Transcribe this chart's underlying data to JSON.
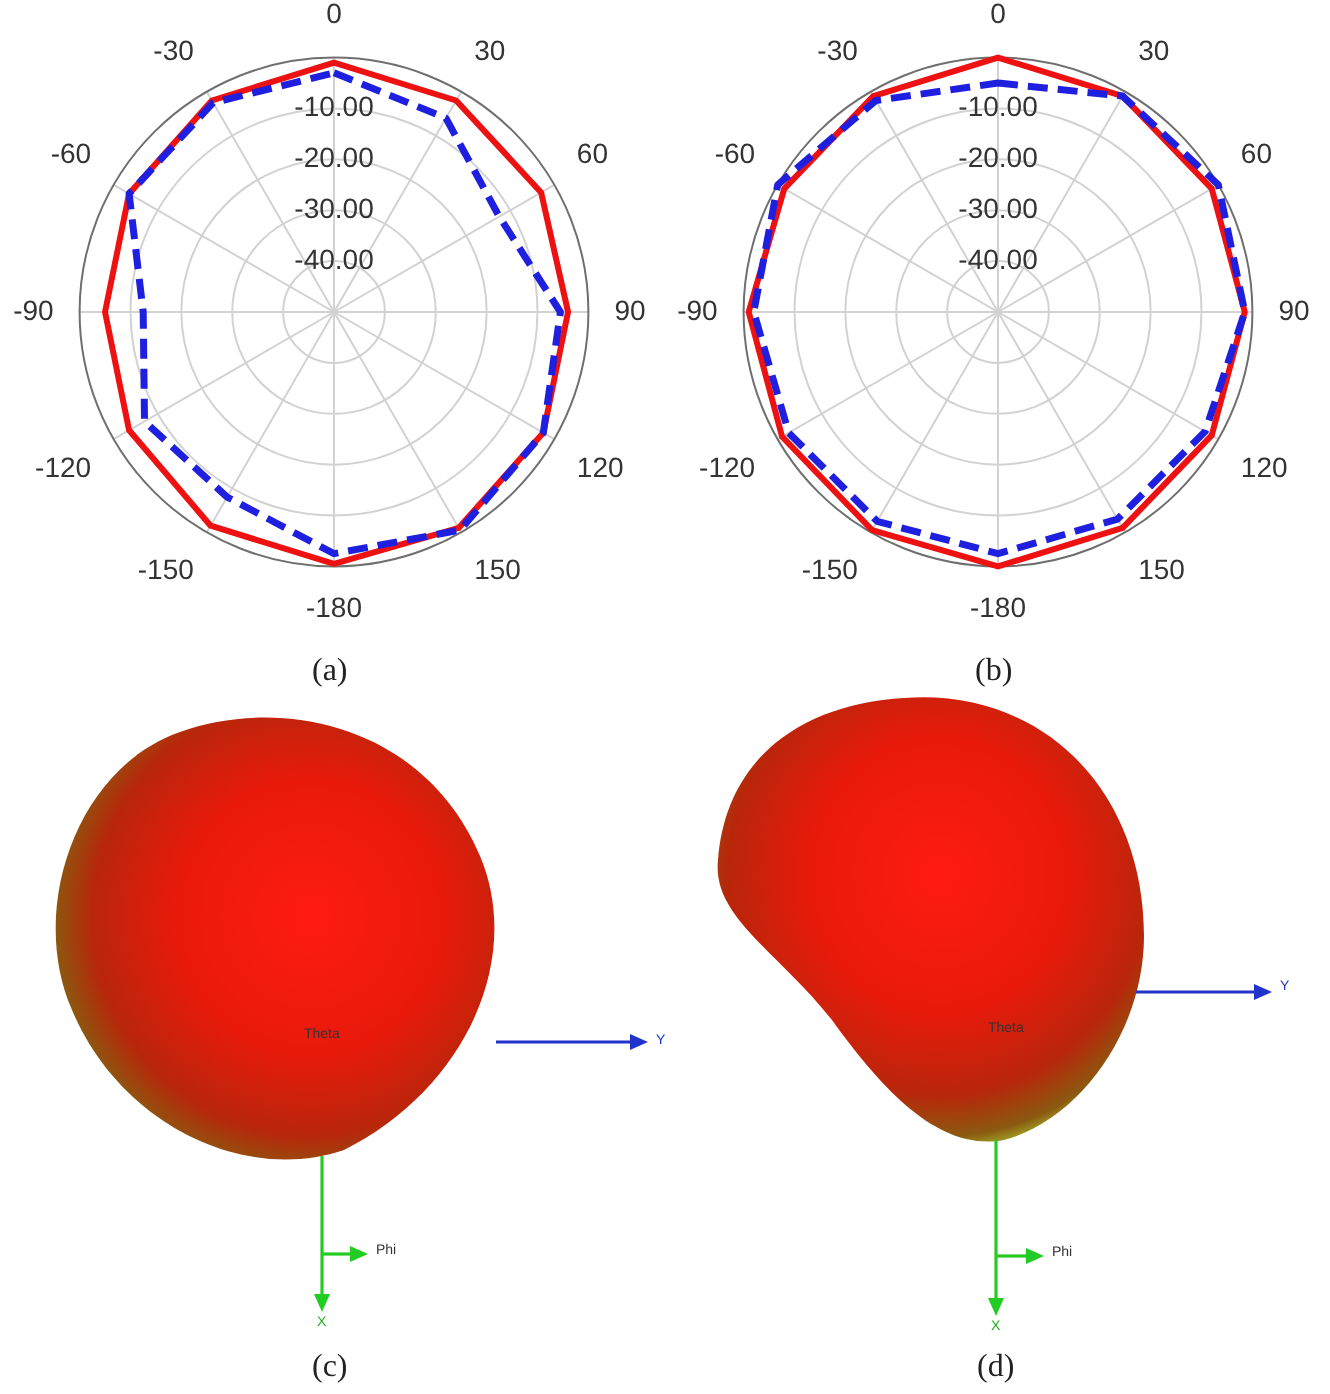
{
  "chart_data": [
    {
      "type": "radar",
      "categories": [
        "0",
        "30",
        "60",
        "90",
        "120",
        "150",
        "-180",
        "-150",
        "-120",
        "-90",
        "-60",
        "-30"
      ],
      "ylim": [
        -50,
        0
      ],
      "yticks": [
        {
          "value": -40,
          "label": "-40.00"
        },
        {
          "value": -30,
          "label": "-30.00"
        },
        {
          "value": -20,
          "label": "-20.00"
        },
        {
          "value": -10,
          "label": "-10.00"
        }
      ],
      "grid": true,
      "marker": "none",
      "annotations": [
        "(a)"
      ],
      "series": [
        {
          "color": "#ee1111",
          "line_style": "solid",
          "values": [
            -1,
            -2,
            -3,
            -4,
            -2.5,
            -1,
            -0.5,
            -1.5,
            -3.5,
            -5,
            -3.5,
            -2
          ]
        },
        {
          "color": "#1f1fe0",
          "line_style": "dashed",
          "values": [
            -3,
            -6,
            -12.5,
            -5.5,
            -2.5,
            -0.5,
            -2.5,
            -8,
            -7,
            -12.5,
            -3.5,
            -2.5
          ]
        }
      ]
    },
    {
      "type": "radar",
      "categories": [
        "0",
        "30",
        "60",
        "90",
        "120",
        "150",
        "-180",
        "-150",
        "-120",
        "-90",
        "-60",
        "-30"
      ],
      "ylim": [
        -50,
        0
      ],
      "yticks": [
        {
          "value": -40,
          "label": "-40.00"
        },
        {
          "value": -30,
          "label": "-30.00"
        },
        {
          "value": -20,
          "label": "-20.00"
        },
        {
          "value": -10,
          "label": "-10.00"
        }
      ],
      "grid": true,
      "marker": "none",
      "annotations": [
        "(b)"
      ],
      "series": [
        {
          "color": "#ee1111",
          "line_style": "solid",
          "values": [
            0,
            -1,
            -1.5,
            -1.5,
            -1.5,
            -1,
            0,
            -0.5,
            -1,
            -1,
            -1.5,
            -1
          ]
        },
        {
          "color": "#1f1fe0",
          "line_style": "dashed",
          "values": [
            -5,
            -1,
            0,
            -1.5,
            -3,
            -3,
            -2.5,
            -2.5,
            -2.5,
            -2,
            0,
            -2
          ]
        }
      ]
    },
    {
      "type": "other",
      "annotations": [
        "Y",
        "Theta",
        "Phi",
        "X",
        "(c)"
      ]
    },
    {
      "type": "other",
      "annotations": [
        "Y",
        "Theta",
        "Phi",
        "X",
        "(d)"
      ]
    }
  ]
}
